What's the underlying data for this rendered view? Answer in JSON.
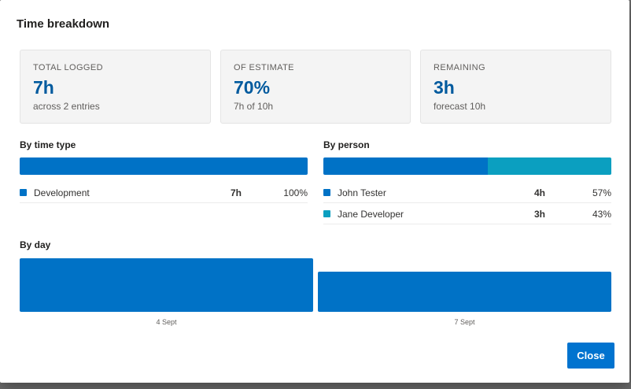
{
  "dialog": {
    "title": "Time breakdown"
  },
  "summary": [
    {
      "label": "TOTAL LOGGED",
      "value": "7h",
      "sub": "across 2 entries"
    },
    {
      "label": "OF ESTIMATE",
      "value": "70%",
      "sub": "7h of 10h"
    },
    {
      "label": "REMAINING",
      "value": "3h",
      "sub": "forecast 10h"
    }
  ],
  "by_time_type": {
    "title": "By time type",
    "items": [
      {
        "name": "Development",
        "hours": "7h",
        "percent": "100%",
        "fraction": 1.0,
        "color": "#0072c6"
      }
    ]
  },
  "by_person": {
    "title": "By person",
    "items": [
      {
        "name": "John Tester",
        "hours": "4h",
        "percent": "57%",
        "fraction": 0.57,
        "color": "#0072c6"
      },
      {
        "name": "Jane Developer",
        "hours": "3h",
        "percent": "43%",
        "fraction": 0.43,
        "color": "#0b9fc0"
      }
    ]
  },
  "by_day": {
    "title": "By day",
    "color": "#0072c6",
    "days": [
      {
        "label": "4 Sept",
        "hours": 4
      },
      {
        "label": "7 Sept",
        "hours": 3
      }
    ]
  },
  "footer": {
    "close_label": "Close"
  }
}
